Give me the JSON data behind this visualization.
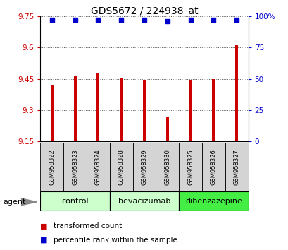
{
  "title": "GDS5672 / 224938_at",
  "samples": [
    "GSM958322",
    "GSM958323",
    "GSM958324",
    "GSM958328",
    "GSM958329",
    "GSM958330",
    "GSM958325",
    "GSM958326",
    "GSM958327"
  ],
  "bar_values": [
    9.42,
    9.465,
    9.475,
    9.455,
    9.445,
    9.265,
    9.445,
    9.45,
    9.61
  ],
  "percentile_values": [
    97,
    97,
    97,
    97,
    97,
    96,
    97,
    97,
    97
  ],
  "ylim_left": [
    9.15,
    9.75
  ],
  "ylim_right": [
    0,
    100
  ],
  "yticks_left": [
    9.15,
    9.3,
    9.45,
    9.6,
    9.75
  ],
  "yticks_right": [
    0,
    25,
    50,
    75,
    100
  ],
  "ytick_labels_left": [
    "9.15",
    "9.3",
    "9.45",
    "9.6",
    "9.75"
  ],
  "ytick_labels_right": [
    "0",
    "25",
    "50",
    "75",
    "100%"
  ],
  "bar_color": "#cc0000",
  "dot_color": "#0000cc",
  "grid_color": "#555555",
  "background_color": "#ffffff",
  "groups": [
    {
      "label": "control",
      "indices": [
        0,
        1,
        2
      ],
      "color": "#ccffcc"
    },
    {
      "label": "bevacizumab",
      "indices": [
        3,
        4,
        5
      ],
      "color": "#ccffcc"
    },
    {
      "label": "dibenzazepine",
      "indices": [
        6,
        7,
        8
      ],
      "color": "#44ee44"
    }
  ],
  "legend_items": [
    "transformed count",
    "percentile rank within the sample"
  ],
  "bar_width": 0.12,
  "ybaseline": 9.15
}
